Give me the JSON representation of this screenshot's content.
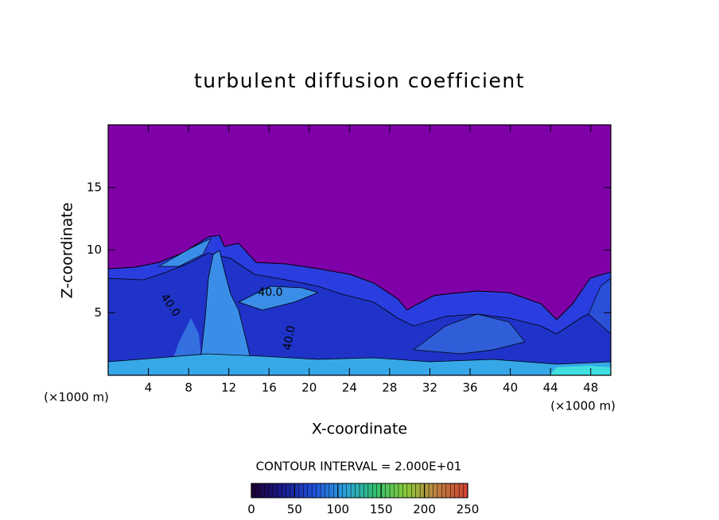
{
  "chart_data": {
    "type": "contour",
    "title": "turbulent diffusion coefficient",
    "xlabel": "X-coordinate",
    "ylabel": "Z-coordinate",
    "xunit": "(×1000 m)",
    "yunit": "(×1000 m)",
    "xlim": [
      0,
      50
    ],
    "xticks": [
      4,
      8,
      12,
      16,
      20,
      24,
      28,
      32,
      36,
      40,
      44,
      48
    ],
    "ylim": [
      0,
      20
    ],
    "yticks": [
      5,
      10,
      15
    ],
    "contour_labels": [
      "40.0",
      "40.0",
      "40.0"
    ],
    "contour_interval": "CONTOUR INTERVAL = 2.000E+01",
    "colorbar": {
      "lim": [
        0,
        250
      ],
      "ticks": [
        0,
        50,
        100,
        150,
        200,
        250
      ],
      "colors": [
        "#1a0030",
        "#1a1a8c",
        "#1f4fd8",
        "#2aa0e0",
        "#30c070",
        "#8acb3a",
        "#c08040",
        "#d04030"
      ]
    }
  }
}
